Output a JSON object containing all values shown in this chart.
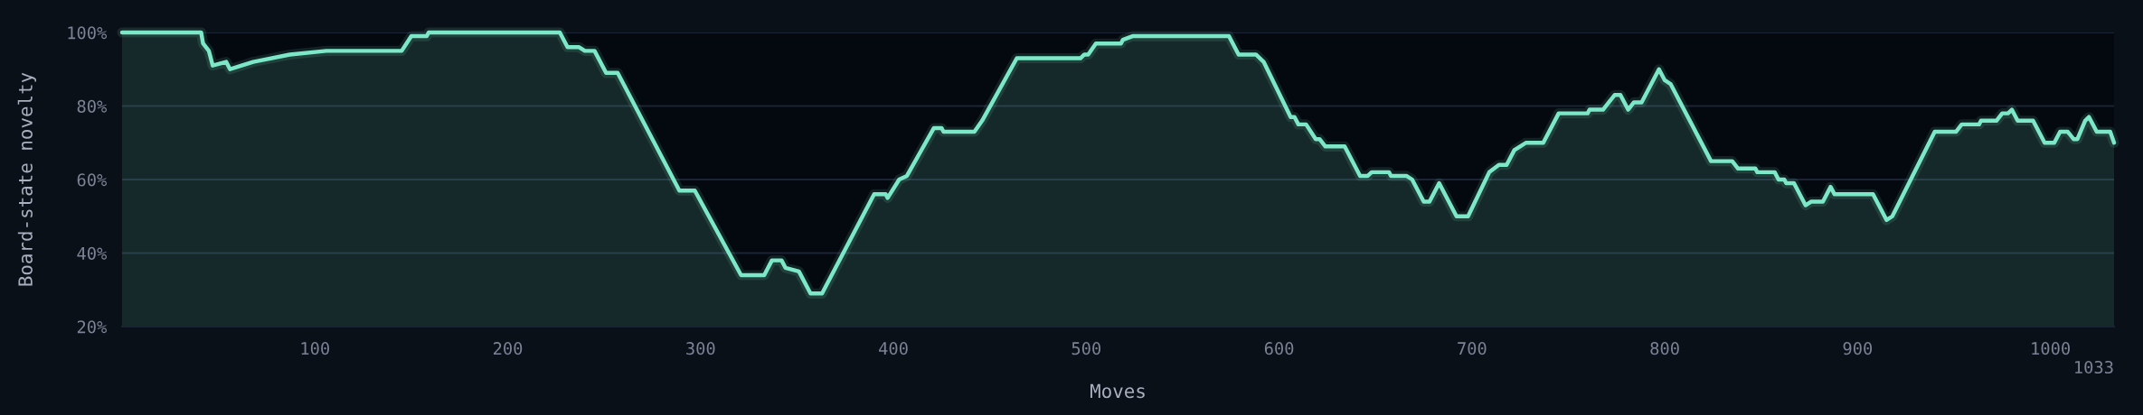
{
  "chart_data": {
    "type": "area",
    "xlabel": "Moves",
    "ylabel": "Board-state novelty",
    "x": [
      0,
      41,
      42,
      45,
      47,
      54,
      56,
      62,
      68,
      87,
      106,
      145,
      150,
      158,
      159,
      227,
      231,
      237,
      240,
      245,
      251,
      257,
      289,
      297,
      321,
      333,
      337,
      342,
      344,
      351,
      357,
      363,
      390,
      396,
      397,
      403,
      407,
      421,
      425,
      426,
      442,
      446,
      464,
      497,
      499,
      501,
      505,
      518,
      519,
      524,
      574,
      579,
      588,
      592,
      606,
      608,
      610,
      614,
      619,
      621,
      624,
      634,
      642,
      646,
      648,
      657,
      658,
      666,
      669,
      675,
      678,
      683,
      692,
      698,
      709,
      714,
      718,
      722,
      725,
      728,
      737,
      745,
      760,
      761,
      768,
      771,
      774,
      777,
      781,
      784,
      788,
      797,
      800,
      803,
      824,
      835,
      838,
      847,
      848,
      857,
      859,
      862,
      863,
      867,
      873,
      876,
      882,
      886,
      888,
      908,
      915,
      918,
      940,
      951,
      954,
      963,
      964,
      972,
      975,
      978,
      980,
      983,
      991,
      997,
      1002,
      1005,
      1009,
      1012,
      1014,
      1018,
      1020,
      1024,
      1031,
      1033
    ],
    "series": [
      {
        "color": "#7de8c8",
        "values": [
          100,
          100,
          97,
          95,
          91,
          92,
          90,
          91,
          92,
          94,
          95,
          95,
          99,
          99,
          100,
          100,
          96,
          96,
          95,
          95,
          89,
          89,
          57,
          57,
          34,
          34,
          38,
          38,
          36,
          35,
          29,
          29,
          56,
          56,
          55,
          60,
          61,
          74,
          74,
          73,
          73,
          76,
          93,
          93,
          94,
          94,
          97,
          97,
          98,
          99,
          99,
          94,
          94,
          92,
          77,
          77,
          75,
          75,
          71,
          71,
          69,
          69,
          61,
          61,
          62,
          62,
          61,
          61,
          60,
          54,
          54,
          59,
          50,
          50,
          62,
          64,
          64,
          68,
          69,
          70,
          70,
          78,
          78,
          79,
          79,
          81,
          83,
          83,
          79,
          81,
          81,
          90,
          87,
          86,
          65,
          65,
          63,
          63,
          62,
          62,
          60,
          60,
          59,
          59,
          53,
          54,
          54,
          58,
          56,
          56,
          49,
          50,
          73,
          73,
          75,
          75,
          76,
          76,
          78,
          78,
          79,
          76,
          76,
          70,
          70,
          73,
          73,
          71,
          71,
          76,
          77,
          73,
          73,
          70
        ]
      }
    ],
    "xlim": [
      0,
      1033
    ],
    "xticks": [
      100,
      200,
      300,
      400,
      500,
      600,
      700,
      800,
      900,
      1000
    ],
    "ylim": [
      20,
      100
    ],
    "yticks": [
      {
        "value": 20,
        "label": "20%"
      },
      {
        "value": 40,
        "label": "40%"
      },
      {
        "value": 60,
        "label": "60%"
      },
      {
        "value": 80,
        "label": "80%"
      },
      {
        "value": 100,
        "label": "100%"
      }
    ],
    "grid": "y",
    "annotations": [
      "1033"
    ]
  }
}
